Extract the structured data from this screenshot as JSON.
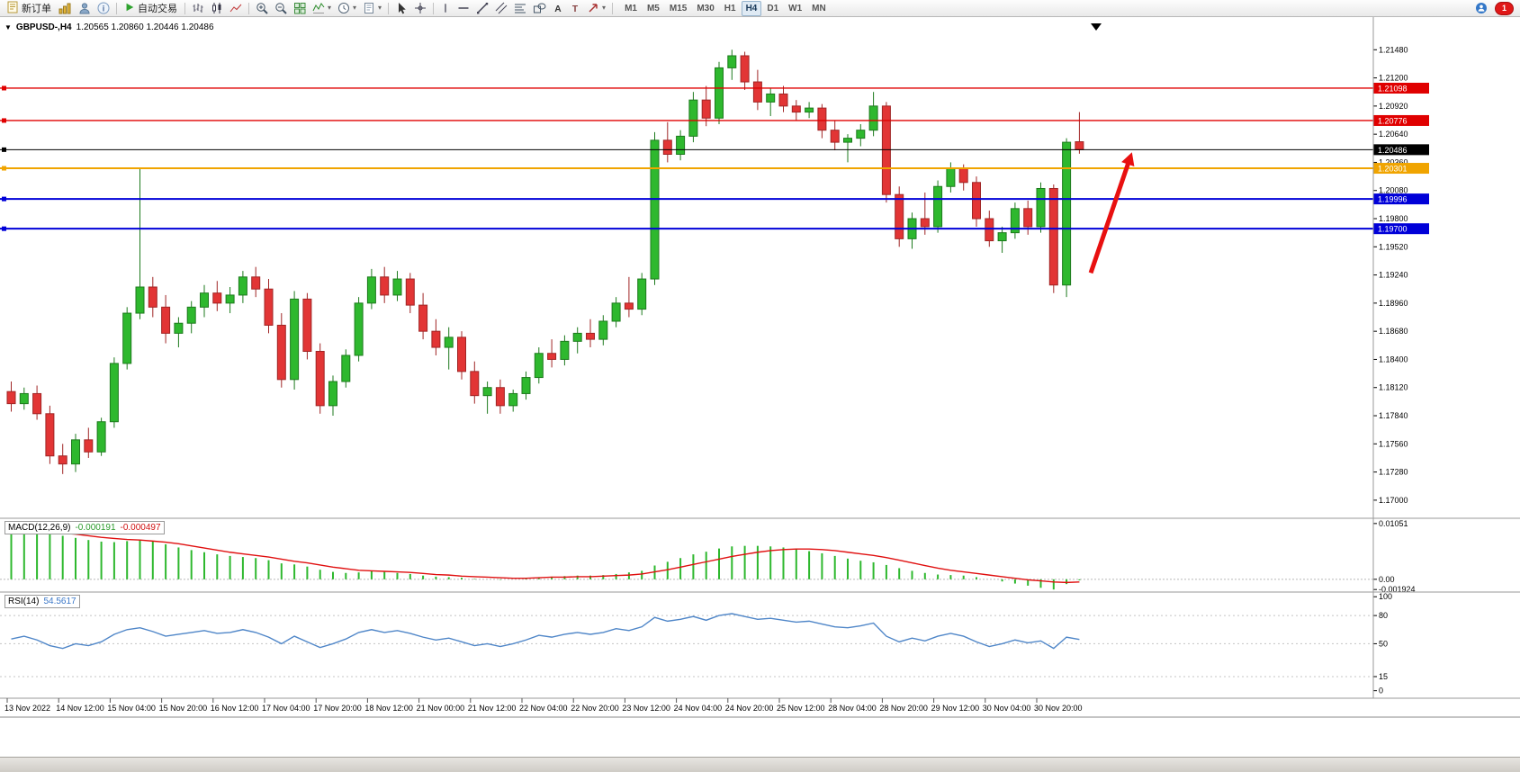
{
  "toolbar": {
    "new_order": "新订单",
    "auto_trading": "自动交易",
    "timeframes": [
      "M1",
      "M5",
      "M15",
      "M30",
      "H1",
      "H4",
      "D1",
      "W1",
      "MN"
    ],
    "active_timeframe": "H4",
    "notification_count": "1"
  },
  "chart": {
    "symbol_title": "GBPUSD-,H4",
    "ohlc_text": "1.20565 1.20860 1.20446 1.20486"
  },
  "chart_data": [
    {
      "type": "candlestick",
      "symbol": "GBPUSD-",
      "timeframe": "H4",
      "open": "1.20565",
      "high": "1.20860",
      "low": "1.20446",
      "close": "1.20486",
      "ylim": [
        1.1682,
        1.2176
      ],
      "y_ticks": [
        "1.21480",
        "1.21200",
        "1.20920",
        "1.20640",
        "1.20360",
        "1.20080",
        "1.19800",
        "1.19520",
        "1.19240",
        "1.18960",
        "1.18680",
        "1.18400",
        "1.18120",
        "1.17840",
        "1.17560",
        "1.17280",
        "1.17000"
      ],
      "x_labels": [
        "13 Nov 2022",
        "14 Nov 12:00",
        "15 Nov 04:00",
        "15 Nov 20:00",
        "16 Nov 12:00",
        "17 Nov 04:00",
        "17 Nov 20:00",
        "18 Nov 12:00",
        "21 Nov 00:00",
        "21 Nov 12:00",
        "22 Nov 04:00",
        "22 Nov 20:00",
        "23 Nov 12:00",
        "24 Nov 04:00",
        "24 Nov 20:00",
        "25 Nov 12:00",
        "28 Nov 04:00",
        "28 Nov 20:00",
        "29 Nov 12:00",
        "30 Nov 04:00",
        "30 Nov 20:00"
      ],
      "label_every": 4,
      "colors": {
        "up": "#2eb82e",
        "down": "#e23535",
        "up_border": "#1d7a1d",
        "down_border": "#a02525"
      },
      "hlines": [
        {
          "price": 1.21098,
          "color": "#e00000",
          "width": 1.4,
          "label": "1.21098"
        },
        {
          "price": 1.20776,
          "color": "#e00000",
          "width": 1.4,
          "label": "1.20776"
        },
        {
          "price": 1.20486,
          "color": "#000000",
          "width": 1,
          "label": "1.20486",
          "role": "current-price"
        },
        {
          "price": 1.20301,
          "color": "#f0a400",
          "width": 2,
          "label": "1.20301"
        },
        {
          "price": 1.19996,
          "color": "#0000d8",
          "width": 2,
          "label": "1.19996"
        },
        {
          "price": 1.197,
          "color": "#0000d8",
          "width": 2,
          "label": "1.19700"
        }
      ],
      "annotations": [
        {
          "type": "arrow",
          "from": [
            84.2,
            1.1926
          ],
          "to": [
            87.4,
            1.2046
          ],
          "color": "#e81010"
        }
      ],
      "candles": [
        [
          1.1808,
          1.1818,
          1.1788,
          1.1796
        ],
        [
          1.1796,
          1.1812,
          1.179,
          1.1806
        ],
        [
          1.1806,
          1.1814,
          1.178,
          1.1786
        ],
        [
          1.1786,
          1.1794,
          1.1736,
          1.1744
        ],
        [
          1.1744,
          1.1756,
          1.1726,
          1.1736
        ],
        [
          1.1736,
          1.1766,
          1.1728,
          1.176
        ],
        [
          1.176,
          1.1772,
          1.1742,
          1.1748
        ],
        [
          1.1748,
          1.1782,
          1.1744,
          1.1778
        ],
        [
          1.1778,
          1.1842,
          1.1772,
          1.1836
        ],
        [
          1.1836,
          1.1892,
          1.183,
          1.1886
        ],
        [
          1.1886,
          1.203,
          1.188,
          1.1912
        ],
        [
          1.1912,
          1.1922,
          1.1882,
          1.1892
        ],
        [
          1.1892,
          1.1904,
          1.1856,
          1.1866
        ],
        [
          1.1866,
          1.1882,
          1.1852,
          1.1876
        ],
        [
          1.1876,
          1.1898,
          1.1866,
          1.1892
        ],
        [
          1.1892,
          1.1914,
          1.1882,
          1.1906
        ],
        [
          1.1906,
          1.1918,
          1.1888,
          1.1896
        ],
        [
          1.1896,
          1.1912,
          1.1886,
          1.1904
        ],
        [
          1.1904,
          1.1928,
          1.1896,
          1.1922
        ],
        [
          1.1922,
          1.1932,
          1.1902,
          1.191
        ],
        [
          1.191,
          1.192,
          1.1866,
          1.1874
        ],
        [
          1.1874,
          1.1886,
          1.1812,
          1.182
        ],
        [
          1.182,
          1.1908,
          1.181,
          1.19
        ],
        [
          1.19,
          1.1906,
          1.184,
          1.1848
        ],
        [
          1.1848,
          1.1856,
          1.1786,
          1.1794
        ],
        [
          1.1794,
          1.1824,
          1.1784,
          1.1818
        ],
        [
          1.1818,
          1.185,
          1.1812,
          1.1844
        ],
        [
          1.1844,
          1.1902,
          1.1838,
          1.1896
        ],
        [
          1.1896,
          1.193,
          1.189,
          1.1922
        ],
        [
          1.1922,
          1.1932,
          1.1896,
          1.1904
        ],
        [
          1.1904,
          1.1928,
          1.1898,
          1.192
        ],
        [
          1.192,
          1.1926,
          1.1886,
          1.1894
        ],
        [
          1.1894,
          1.1906,
          1.186,
          1.1868
        ],
        [
          1.1868,
          1.188,
          1.1844,
          1.1852
        ],
        [
          1.1852,
          1.1872,
          1.183,
          1.1862
        ],
        [
          1.1862,
          1.1868,
          1.182,
          1.1828
        ],
        [
          1.1828,
          1.1838,
          1.1796,
          1.1804
        ],
        [
          1.1804,
          1.1818,
          1.1786,
          1.1812
        ],
        [
          1.1812,
          1.182,
          1.1786,
          1.1794
        ],
        [
          1.1794,
          1.181,
          1.1788,
          1.1806
        ],
        [
          1.1806,
          1.1828,
          1.18,
          1.1822
        ],
        [
          1.1822,
          1.1852,
          1.1816,
          1.1846
        ],
        [
          1.1846,
          1.186,
          1.1832,
          1.184
        ],
        [
          1.184,
          1.1864,
          1.1834,
          1.1858
        ],
        [
          1.1858,
          1.1872,
          1.1846,
          1.1866
        ],
        [
          1.1866,
          1.188,
          1.1852,
          1.186
        ],
        [
          1.186,
          1.1884,
          1.1854,
          1.1878
        ],
        [
          1.1878,
          1.1902,
          1.1872,
          1.1896
        ],
        [
          1.1896,
          1.1922,
          1.1882,
          1.189
        ],
        [
          1.189,
          1.1926,
          1.1884,
          1.192
        ],
        [
          1.192,
          1.2066,
          1.1914,
          1.2058
        ],
        [
          1.2058,
          1.2076,
          1.2036,
          1.2044
        ],
        [
          1.2044,
          1.2068,
          1.2038,
          1.2062
        ],
        [
          1.2062,
          1.2106,
          1.2056,
          1.2098
        ],
        [
          1.2098,
          1.2112,
          1.2072,
          1.208
        ],
        [
          1.208,
          1.2136,
          1.2074,
          1.213
        ],
        [
          1.213,
          1.2148,
          1.2118,
          1.2142
        ],
        [
          1.2142,
          1.2146,
          1.2108,
          1.2116
        ],
        [
          1.2116,
          1.2128,
          1.2088,
          1.2096
        ],
        [
          1.2096,
          1.211,
          1.2082,
          1.2104
        ],
        [
          1.2104,
          1.2112,
          1.2086,
          1.2092
        ],
        [
          1.2092,
          1.2098,
          1.2078,
          1.2086
        ],
        [
          1.2086,
          1.2096,
          1.208,
          1.209
        ],
        [
          1.209,
          1.2094,
          1.206,
          1.2068
        ],
        [
          1.2068,
          1.2078,
          1.2048,
          1.2056
        ],
        [
          1.2056,
          1.2064,
          1.2036,
          1.206
        ],
        [
          1.206,
          1.2074,
          1.2052,
          1.2068
        ],
        [
          1.2068,
          1.2106,
          1.2062,
          1.2092
        ],
        [
          1.2092,
          1.2096,
          1.1996,
          1.2004
        ],
        [
          1.2004,
          1.2012,
          1.1952,
          1.196
        ],
        [
          1.196,
          1.1986,
          1.195,
          1.198
        ],
        [
          1.198,
          1.2006,
          1.1964,
          1.1972
        ],
        [
          1.1972,
          1.2018,
          1.1966,
          1.2012
        ],
        [
          1.2012,
          1.2036,
          1.2006,
          1.203
        ],
        [
          1.203,
          1.2034,
          1.2008,
          1.2016
        ],
        [
          1.2016,
          1.2022,
          1.1972,
          1.198
        ],
        [
          1.198,
          1.1988,
          1.1952,
          1.1958
        ],
        [
          1.1958,
          1.1972,
          1.1946,
          1.1966
        ],
        [
          1.1966,
          1.1996,
          1.196,
          1.199
        ],
        [
          1.199,
          1.1998,
          1.1964,
          1.1972
        ],
        [
          1.1972,
          1.2016,
          1.1966,
          1.201
        ],
        [
          1.201,
          1.2014,
          1.1906,
          1.1914
        ],
        [
          1.1914,
          1.206,
          1.1902,
          1.2056
        ],
        [
          1.20565,
          1.2086,
          1.20446,
          1.20486
        ]
      ]
    },
    {
      "type": "macd_histogram",
      "label": "MACD(12,26,9)",
      "macd_value": "-0.000191",
      "signal_value": "-0.000497",
      "ylim": [
        -0.0024,
        0.0115
      ],
      "y_ticks": [
        "0.01051",
        "0.00",
        "-0.001924"
      ],
      "colors": {
        "histogram": "#2eb82e",
        "signal": "#e01010"
      },
      "histogram": [
        0.0085,
        0.0088,
        0.009,
        0.0086,
        0.0082,
        0.0078,
        0.0074,
        0.0071,
        0.007,
        0.0072,
        0.0074,
        0.0071,
        0.0066,
        0.006,
        0.0055,
        0.0051,
        0.0047,
        0.0044,
        0.0042,
        0.004,
        0.0036,
        0.003,
        0.0028,
        0.0024,
        0.0018,
        0.0014,
        0.0012,
        0.0013,
        0.0015,
        0.0014,
        0.0012,
        0.001,
        0.0007,
        0.0005,
        0.0004,
        0.0003,
        0.0001,
        0.0,
        -0.0001,
        0.0,
        0.0002,
        0.0004,
        0.0005,
        0.0006,
        0.0007,
        0.0007,
        0.0008,
        0.001,
        0.0013,
        0.0016,
        0.0026,
        0.0033,
        0.004,
        0.0047,
        0.0052,
        0.0058,
        0.0062,
        0.0063,
        0.0063,
        0.0062,
        0.006,
        0.0057,
        0.0053,
        0.0049,
        0.0044,
        0.0039,
        0.0035,
        0.0032,
        0.0027,
        0.0021,
        0.0016,
        0.0012,
        0.0009,
        0.0008,
        0.0007,
        0.0004,
        0.0,
        -0.0004,
        -0.0008,
        -0.0012,
        -0.0016,
        -0.00192,
        -0.0009,
        -0.000191
      ],
      "signal": [
        0.0092,
        0.0091,
        0.009,
        0.0089,
        0.0087,
        0.0085,
        0.0082,
        0.0079,
        0.0077,
        0.0075,
        0.0074,
        0.0072,
        0.007,
        0.0067,
        0.0063,
        0.0059,
        0.0055,
        0.0051,
        0.0048,
        0.0045,
        0.0042,
        0.0038,
        0.0034,
        0.0031,
        0.0027,
        0.0023,
        0.002,
        0.0017,
        0.0016,
        0.0015,
        0.0014,
        0.0013,
        0.0011,
        0.0009,
        0.0008,
        0.0006,
        0.0005,
        0.0004,
        0.0003,
        0.0002,
        0.0002,
        0.0003,
        0.0004,
        0.0004,
        0.0005,
        0.0005,
        0.0006,
        0.0007,
        0.0008,
        0.001,
        0.0014,
        0.0018,
        0.0023,
        0.0028,
        0.0033,
        0.0038,
        0.0043,
        0.0047,
        0.0051,
        0.0054,
        0.0056,
        0.0057,
        0.0057,
        0.0056,
        0.0054,
        0.0051,
        0.0048,
        0.0045,
        0.0041,
        0.0036,
        0.0031,
        0.0026,
        0.0021,
        0.0017,
        0.0014,
        0.0011,
        0.0008,
        0.0005,
        0.0002,
        -0.0001,
        -0.0003,
        -0.0005,
        -0.0006,
        -0.000497
      ]
    },
    {
      "type": "line",
      "label": "RSI(14)",
      "value": "54.5617",
      "ylim": [
        -8,
        105
      ],
      "levels": [
        80,
        50,
        15
      ],
      "y_ticks": [
        "100",
        "80",
        "50",
        "15",
        "0"
      ],
      "color": "#4f86c8",
      "values": [
        55,
        58,
        54,
        48,
        45,
        50,
        48,
        52,
        60,
        65,
        67,
        63,
        58,
        60,
        62,
        64,
        61,
        62,
        65,
        62,
        57,
        50,
        58,
        52,
        46,
        50,
        55,
        62,
        65,
        62,
        64,
        61,
        57,
        54,
        56,
        52,
        48,
        50,
        47,
        50,
        54,
        59,
        57,
        60,
        62,
        60,
        62,
        66,
        64,
        68,
        78,
        74,
        76,
        79,
        75,
        80,
        82,
        79,
        76,
        77,
        75,
        73,
        74,
        71,
        68,
        67,
        69,
        72,
        58,
        52,
        56,
        53,
        58,
        61,
        58,
        52,
        47,
        50,
        54,
        51,
        53,
        45,
        57,
        54.56
      ]
    }
  ]
}
